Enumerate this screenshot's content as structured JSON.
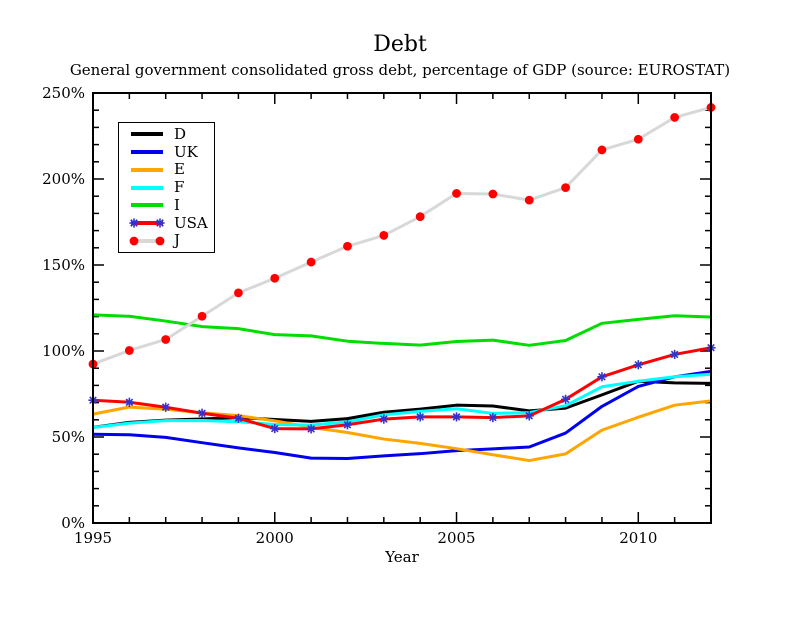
{
  "chart": {
    "title": "Debt",
    "subtitle": "General government consolidated gross debt, percentage of GDP (source: EUROSTAT)",
    "xlabel": "Year"
  },
  "chart_data": {
    "type": "line",
    "title": "Debt",
    "subtitle": "General government consolidated gross debt, percentage of GDP (source: EUROSTAT)",
    "xlabel": "Year",
    "ylabel": "",
    "xlim": [
      1995,
      2012
    ],
    "ylim": [
      0,
      250
    ],
    "grid": false,
    "legend_position": "top-left",
    "xticks": {
      "major": [
        1995,
        2000,
        2005,
        2010
      ],
      "labels": [
        "1995",
        "2000",
        "2005",
        "2010"
      ],
      "minor_step": 1
    },
    "yticks": {
      "major": [
        0,
        50,
        100,
        150,
        200,
        250
      ],
      "labels": [
        "0%",
        "50%",
        "100%",
        "150%",
        "200%",
        "250%"
      ],
      "minor_step": 10
    },
    "x": [
      1995,
      1996,
      1997,
      1998,
      1999,
      2000,
      2001,
      2002,
      2003,
      2004,
      2005,
      2006,
      2007,
      2008,
      2009,
      2010,
      2011,
      2012
    ],
    "series": [
      {
        "name": "D",
        "color": "#000000",
        "marker": "none",
        "marker_color": null,
        "values": [
          55.6,
          58.5,
          59.8,
          60.5,
          61.3,
          60.2,
          59.1,
          60.7,
          64.4,
          66.2,
          68.5,
          68.0,
          65.2,
          66.8,
          74.5,
          82.4,
          81.5,
          81.2
        ]
      },
      {
        "name": "UK",
        "color": "#0000ee",
        "marker": "none",
        "marker_color": null,
        "values": [
          51.6,
          51.3,
          49.8,
          46.7,
          43.7,
          41.0,
          37.7,
          37.5,
          39.0,
          40.3,
          42.1,
          43.1,
          44.2,
          52.3,
          67.8,
          79.4,
          85.0,
          88.2
        ]
      },
      {
        "name": "E",
        "color": "#ffa500",
        "marker": "none",
        "marker_color": null,
        "values": [
          63.3,
          67.4,
          66.1,
          64.1,
          62.4,
          59.4,
          55.6,
          52.6,
          48.8,
          46.3,
          43.2,
          39.7,
          36.3,
          40.2,
          54.0,
          61.5,
          68.5,
          71.0
        ]
      },
      {
        "name": "F",
        "color": "#00ffff",
        "marker": "none",
        "marker_color": null,
        "values": [
          55.5,
          58.1,
          59.5,
          59.6,
          58.9,
          57.3,
          56.9,
          58.8,
          62.9,
          64.9,
          66.4,
          63.7,
          64.2,
          68.2,
          79.2,
          82.4,
          85.0,
          86.5
        ]
      },
      {
        "name": "I",
        "color": "#00dd00",
        "marker": "none",
        "marker_color": null,
        "values": [
          121.0,
          120.2,
          117.4,
          114.2,
          113.0,
          109.5,
          108.8,
          105.7,
          104.4,
          103.4,
          105.5,
          106.3,
          103.3,
          106.1,
          116.1,
          118.4,
          120.5,
          119.8
        ]
      },
      {
        "name": "USA",
        "color": "#ff0000",
        "marker": "asterisk",
        "marker_color": "#3333cc",
        "values": [
          71.4,
          70.2,
          67.3,
          63.8,
          60.9,
          54.9,
          54.7,
          57.1,
          60.4,
          61.7,
          61.7,
          61.3,
          62.3,
          71.9,
          85.0,
          92.0,
          98.0,
          101.9
        ]
      },
      {
        "name": "J",
        "color": "#d8d8d8",
        "marker": "circle",
        "marker_color": "#ff0000",
        "values": [
          92.4,
          100.3,
          106.7,
          120.2,
          133.8,
          142.3,
          151.7,
          160.9,
          167.2,
          178.1,
          191.6,
          191.3,
          187.7,
          195.0,
          216.9,
          223.1,
          235.8,
          241.6
        ]
      }
    ]
  }
}
